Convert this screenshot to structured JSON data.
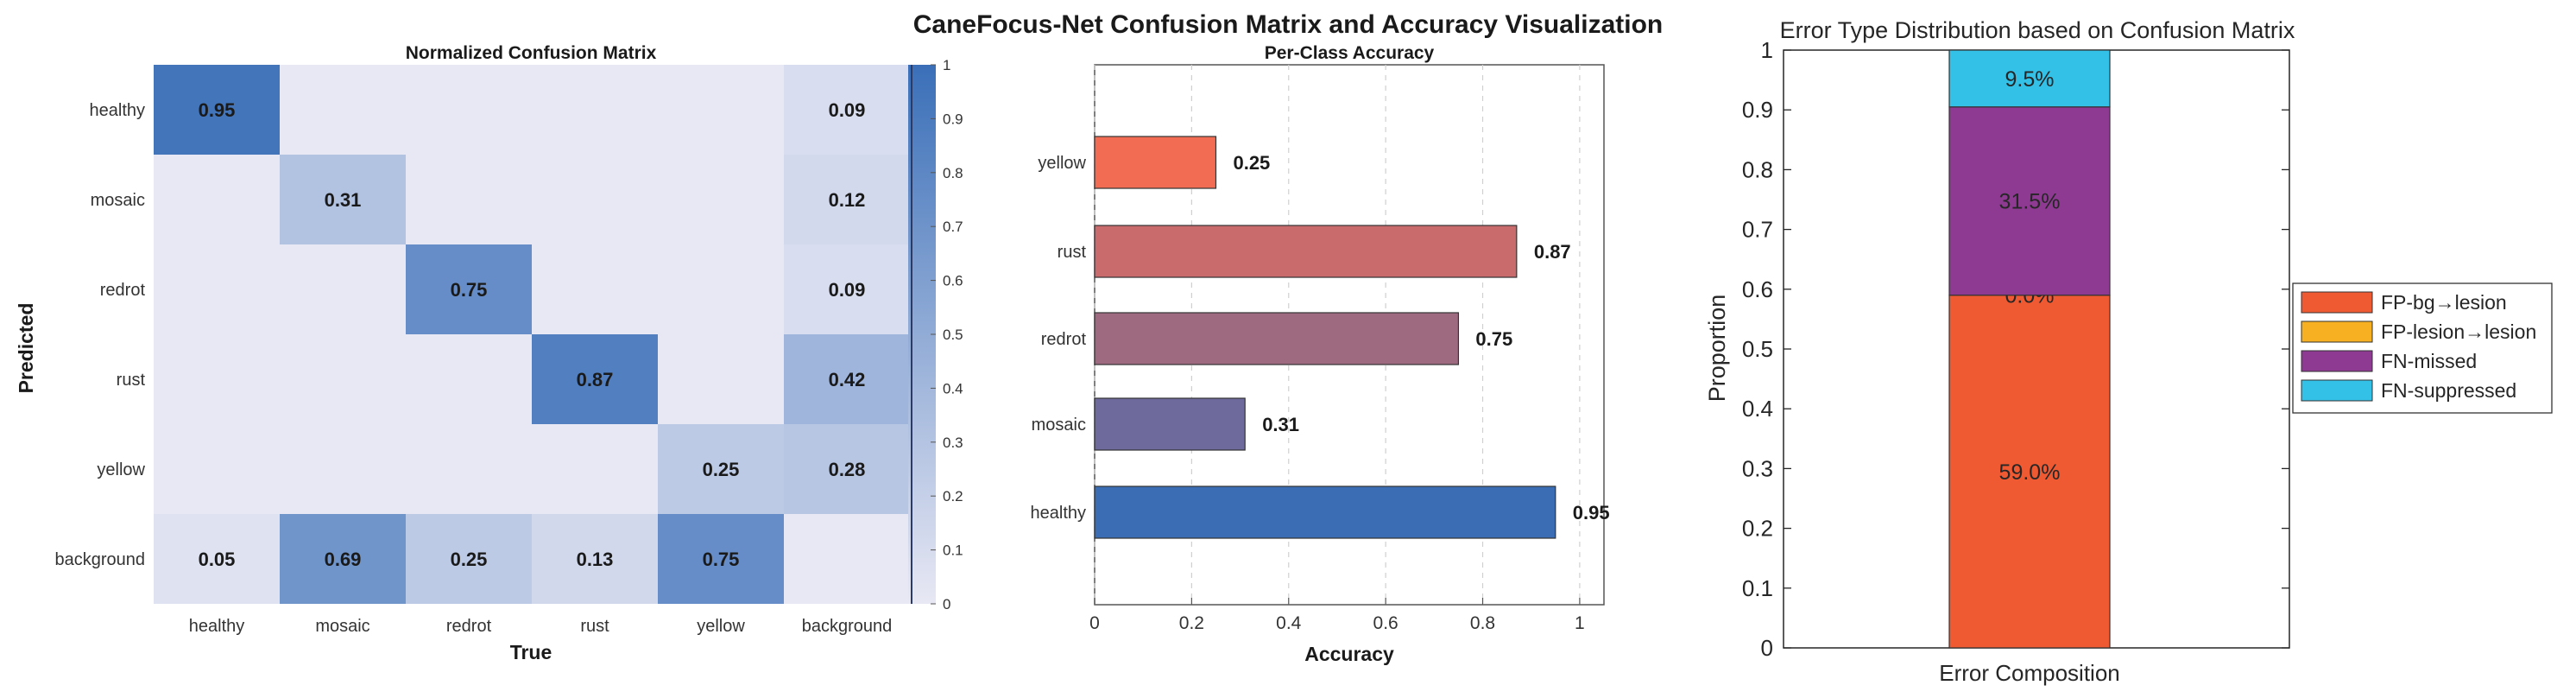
{
  "figure": {
    "title": "CaneFocus-Net Confusion Matrix and Accuracy Visualization"
  },
  "chart_data": [
    {
      "type": "heatmap",
      "title": "Normalized Confusion Matrix",
      "xlabel": "True",
      "ylabel": "Predicted",
      "x_categories": [
        "healthy",
        "mosaic",
        "redrot",
        "rust",
        "yellow",
        "background"
      ],
      "y_categories": [
        "healthy",
        "mosaic",
        "redrot",
        "rust",
        "yellow",
        "background"
      ],
      "values": [
        [
          0.95,
          0,
          0,
          0,
          0,
          0.09
        ],
        [
          0,
          0.31,
          0,
          0,
          0,
          0.12
        ],
        [
          0,
          0,
          0.75,
          0,
          0,
          0.09
        ],
        [
          0,
          0,
          0,
          0.87,
          0,
          0.42
        ],
        [
          0,
          0,
          0,
          0,
          0.25,
          0.28
        ],
        [
          0.05,
          0.69,
          0.25,
          0.13,
          0.75,
          0
        ]
      ],
      "labels": [
        [
          "0.95",
          "",
          "",
          "",
          "",
          "0.09"
        ],
        [
          "",
          "0.31",
          "",
          "",
          "",
          "0.12"
        ],
        [
          "",
          "",
          "0.75",
          "",
          "",
          "0.09"
        ],
        [
          "",
          "",
          "",
          "0.87",
          "",
          "0.42"
        ],
        [
          "",
          "",
          "",
          "",
          "0.25",
          "0.28"
        ],
        [
          "0.05",
          "0.69",
          "0.25",
          "0.13",
          "0.75",
          ""
        ]
      ],
      "colorbar": {
        "range": [
          0,
          1
        ],
        "ticks": [
          "0",
          "0.1",
          "0.2",
          "0.3",
          "0.4",
          "0.5",
          "0.6",
          "0.7",
          "0.8",
          "0.9",
          "1"
        ]
      },
      "colors": {
        "low": "#e8e8f4",
        "high": "#3a6fb8"
      }
    },
    {
      "type": "bar",
      "orientation": "horizontal",
      "title": "Per-Class Accuracy",
      "xlabel": "Accuracy",
      "ylabel": "",
      "categories": [
        "healthy",
        "mosaic",
        "redrot",
        "rust",
        "yellow"
      ],
      "values": [
        0.95,
        0.31,
        0.75,
        0.87,
        0.25
      ],
      "value_labels": [
        "0.95",
        "0.31",
        "0.75",
        "0.87",
        "0.25"
      ],
      "colors": [
        "#3a6db3",
        "#6e6a9c",
        "#9e6a80",
        "#c96a6c",
        "#f26c53"
      ],
      "xlim": [
        0,
        1.05
      ],
      "xticks": [
        "0",
        "0.2",
        "0.4",
        "0.6",
        "0.8",
        "1"
      ],
      "grid": "vertical dashed"
    },
    {
      "type": "bar",
      "orientation": "vertical-stacked",
      "title": "Error Type Distribution based on Confusion Matrix",
      "xlabel": "",
      "ylabel": "Proportion",
      "categories": [
        "Error Composition"
      ],
      "series": [
        {
          "name": "FP-bg→lesion",
          "value": 0.59,
          "label": "59.0%",
          "color": "#f05a33"
        },
        {
          "name": "FP-lesion→lesion",
          "value": 0.0,
          "label": "0.0%",
          "color": "#f6b022"
        },
        {
          "name": "FN-missed",
          "value": 0.315,
          "label": "31.5%",
          "color": "#8e3a93"
        },
        {
          "name": "FN-suppressed",
          "value": 0.095,
          "label": "9.5%",
          "color": "#33c1e8"
        }
      ],
      "ylim": [
        0,
        1
      ],
      "yticks": [
        "0",
        "0.1",
        "0.2",
        "0.3",
        "0.4",
        "0.5",
        "0.6",
        "0.7",
        "0.8",
        "0.9",
        "1"
      ],
      "legend": "right"
    }
  ]
}
